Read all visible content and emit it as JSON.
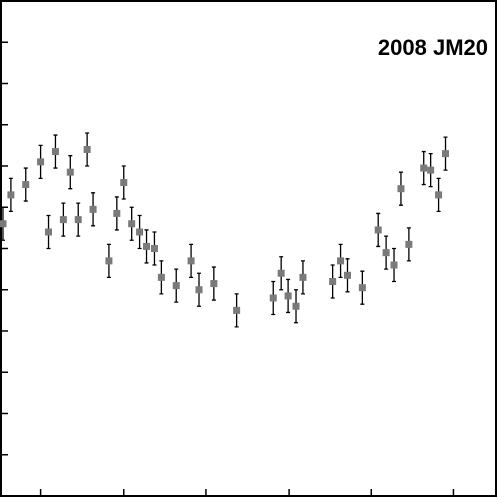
{
  "chart_data": {
    "type": "scatter",
    "title": "2008 JM20",
    "xlabel": "",
    "ylabel": "",
    "xlim": [
      0,
      500
    ],
    "ylim": [
      0,
      12
    ],
    "grid": false,
    "error_bars": true,
    "colors": {
      "marker": "#7a7a7a",
      "errorbar": "#000000",
      "frame": "#000000"
    },
    "x_ticks": [
      40,
      124,
      207,
      291,
      374,
      457
    ],
    "y_ticks": [
      1,
      2,
      3,
      4,
      5,
      6,
      7,
      8,
      9,
      10,
      11
    ],
    "points": [
      {
        "x": 2,
        "y": 6.6,
        "err": 0.4
      },
      {
        "x": 10,
        "y": 7.3,
        "err": 0.4
      },
      {
        "x": 25,
        "y": 7.55,
        "err": 0.4
      },
      {
        "x": 40,
        "y": 8.1,
        "err": 0.4
      },
      {
        "x": 48,
        "y": 6.4,
        "err": 0.4
      },
      {
        "x": 55,
        "y": 8.35,
        "err": 0.4
      },
      {
        "x": 63,
        "y": 6.7,
        "err": 0.4
      },
      {
        "x": 70,
        "y": 7.85,
        "err": 0.4
      },
      {
        "x": 78,
        "y": 6.7,
        "err": 0.4
      },
      {
        "x": 87,
        "y": 8.4,
        "err": 0.4
      },
      {
        "x": 93,
        "y": 6.95,
        "err": 0.4
      },
      {
        "x": 109,
        "y": 5.7,
        "err": 0.4
      },
      {
        "x": 117,
        "y": 6.85,
        "err": 0.4
      },
      {
        "x": 124,
        "y": 7.6,
        "err": 0.4
      },
      {
        "x": 132,
        "y": 6.6,
        "err": 0.4
      },
      {
        "x": 140,
        "y": 6.4,
        "err": 0.4
      },
      {
        "x": 147,
        "y": 6.05,
        "err": 0.4
      },
      {
        "x": 155,
        "y": 6.0,
        "err": 0.4
      },
      {
        "x": 162,
        "y": 5.3,
        "err": 0.4
      },
      {
        "x": 177,
        "y": 5.1,
        "err": 0.4
      },
      {
        "x": 192,
        "y": 5.7,
        "err": 0.4
      },
      {
        "x": 200,
        "y": 5.0,
        "err": 0.4
      },
      {
        "x": 215,
        "y": 5.15,
        "err": 0.4
      },
      {
        "x": 238,
        "y": 4.5,
        "err": 0.4
      },
      {
        "x": 275,
        "y": 4.8,
        "err": 0.4
      },
      {
        "x": 283,
        "y": 5.4,
        "err": 0.4
      },
      {
        "x": 290,
        "y": 4.85,
        "err": 0.4
      },
      {
        "x": 298,
        "y": 4.6,
        "err": 0.4
      },
      {
        "x": 305,
        "y": 5.3,
        "err": 0.4
      },
      {
        "x": 335,
        "y": 5.2,
        "err": 0.4
      },
      {
        "x": 343,
        "y": 5.7,
        "err": 0.4
      },
      {
        "x": 350,
        "y": 5.35,
        "err": 0.4
      },
      {
        "x": 365,
        "y": 5.05,
        "err": 0.4
      },
      {
        "x": 381,
        "y": 6.45,
        "err": 0.4
      },
      {
        "x": 389,
        "y": 5.9,
        "err": 0.4
      },
      {
        "x": 397,
        "y": 5.6,
        "err": 0.4
      },
      {
        "x": 404,
        "y": 7.45,
        "err": 0.4
      },
      {
        "x": 412,
        "y": 6.1,
        "err": 0.4
      },
      {
        "x": 427,
        "y": 7.95,
        "err": 0.4
      },
      {
        "x": 434,
        "y": 7.9,
        "err": 0.4
      },
      {
        "x": 442,
        "y": 7.3,
        "err": 0.4
      },
      {
        "x": 449,
        "y": 8.3,
        "err": 0.4
      }
    ]
  }
}
